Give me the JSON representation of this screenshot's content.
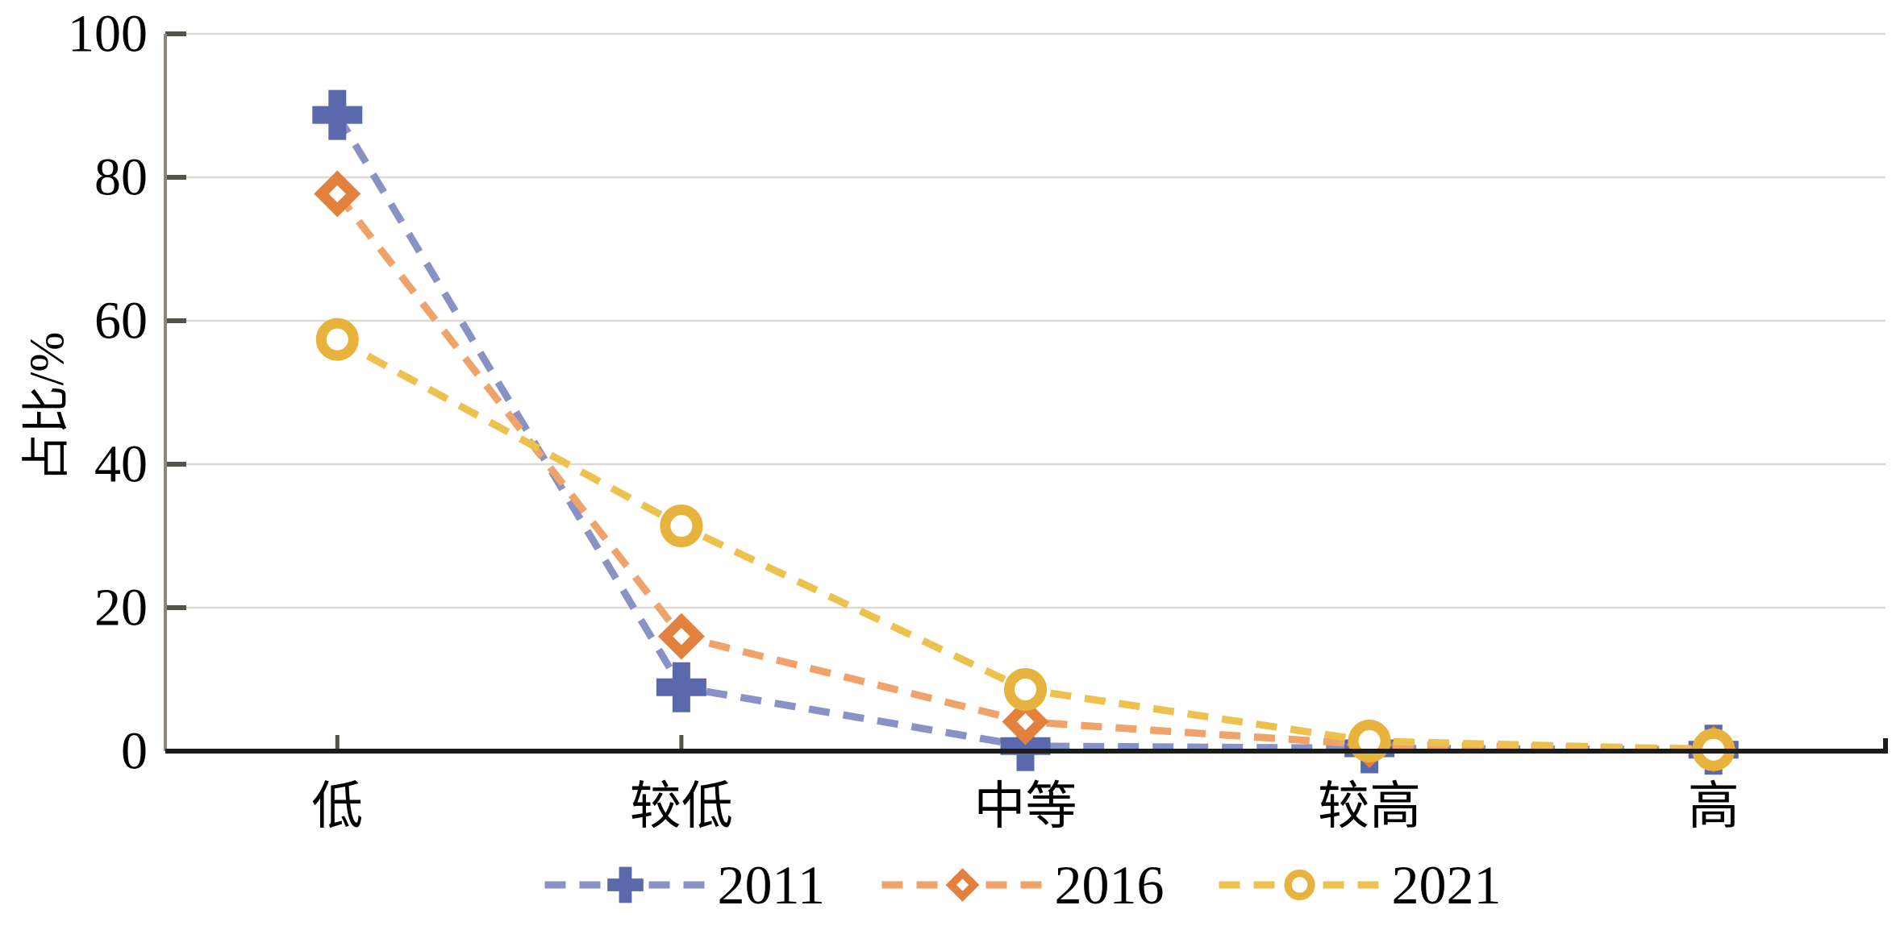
{
  "figure": {
    "kind": "line-chart-figure",
    "background": "#ffffff"
  },
  "chart_data": {
    "type": "line",
    "title": "",
    "xlabel": "",
    "ylabel": "占比/%",
    "ylim": [
      0,
      100
    ],
    "grid": "horizontal-only",
    "line_style": "dashed",
    "legend_position": "bottom-center",
    "categories": [
      "低",
      "较低",
      "中等",
      "较高",
      "高"
    ],
    "y_ticks": [
      {
        "value": 0,
        "label": "0"
      },
      {
        "value": 20,
        "label": "20"
      },
      {
        "value": 40,
        "label": "40"
      },
      {
        "value": 60,
        "label": "60"
      },
      {
        "value": 80,
        "label": "80"
      },
      {
        "value": 100,
        "label": "100"
      }
    ],
    "series": [
      {
        "name": "2011",
        "marker": "plus",
        "marker_color": "#5a69ac",
        "line_color": "#8992c5",
        "values": [
          88.7,
          8.9,
          0.7,
          0.4,
          0.2
        ]
      },
      {
        "name": "2016",
        "marker": "diamond",
        "marker_color": "#e2813e",
        "line_color": "#f0a26b",
        "values": [
          77.7,
          16.0,
          4.1,
          0.9,
          0.3
        ]
      },
      {
        "name": "2021",
        "marker": "circle",
        "marker_color": "#e7b33c",
        "line_color": "#edc14e",
        "values": [
          57.4,
          31.4,
          8.6,
          1.4,
          0.2
        ]
      }
    ]
  },
  "colors": {
    "y_axis_line": "#8b877f",
    "gridline": "#ddd9d3",
    "tick_mark": "#55524c",
    "x_axis_line": "#1c1c1a",
    "text": "#000000",
    "marker_hole": "#ffffff"
  }
}
